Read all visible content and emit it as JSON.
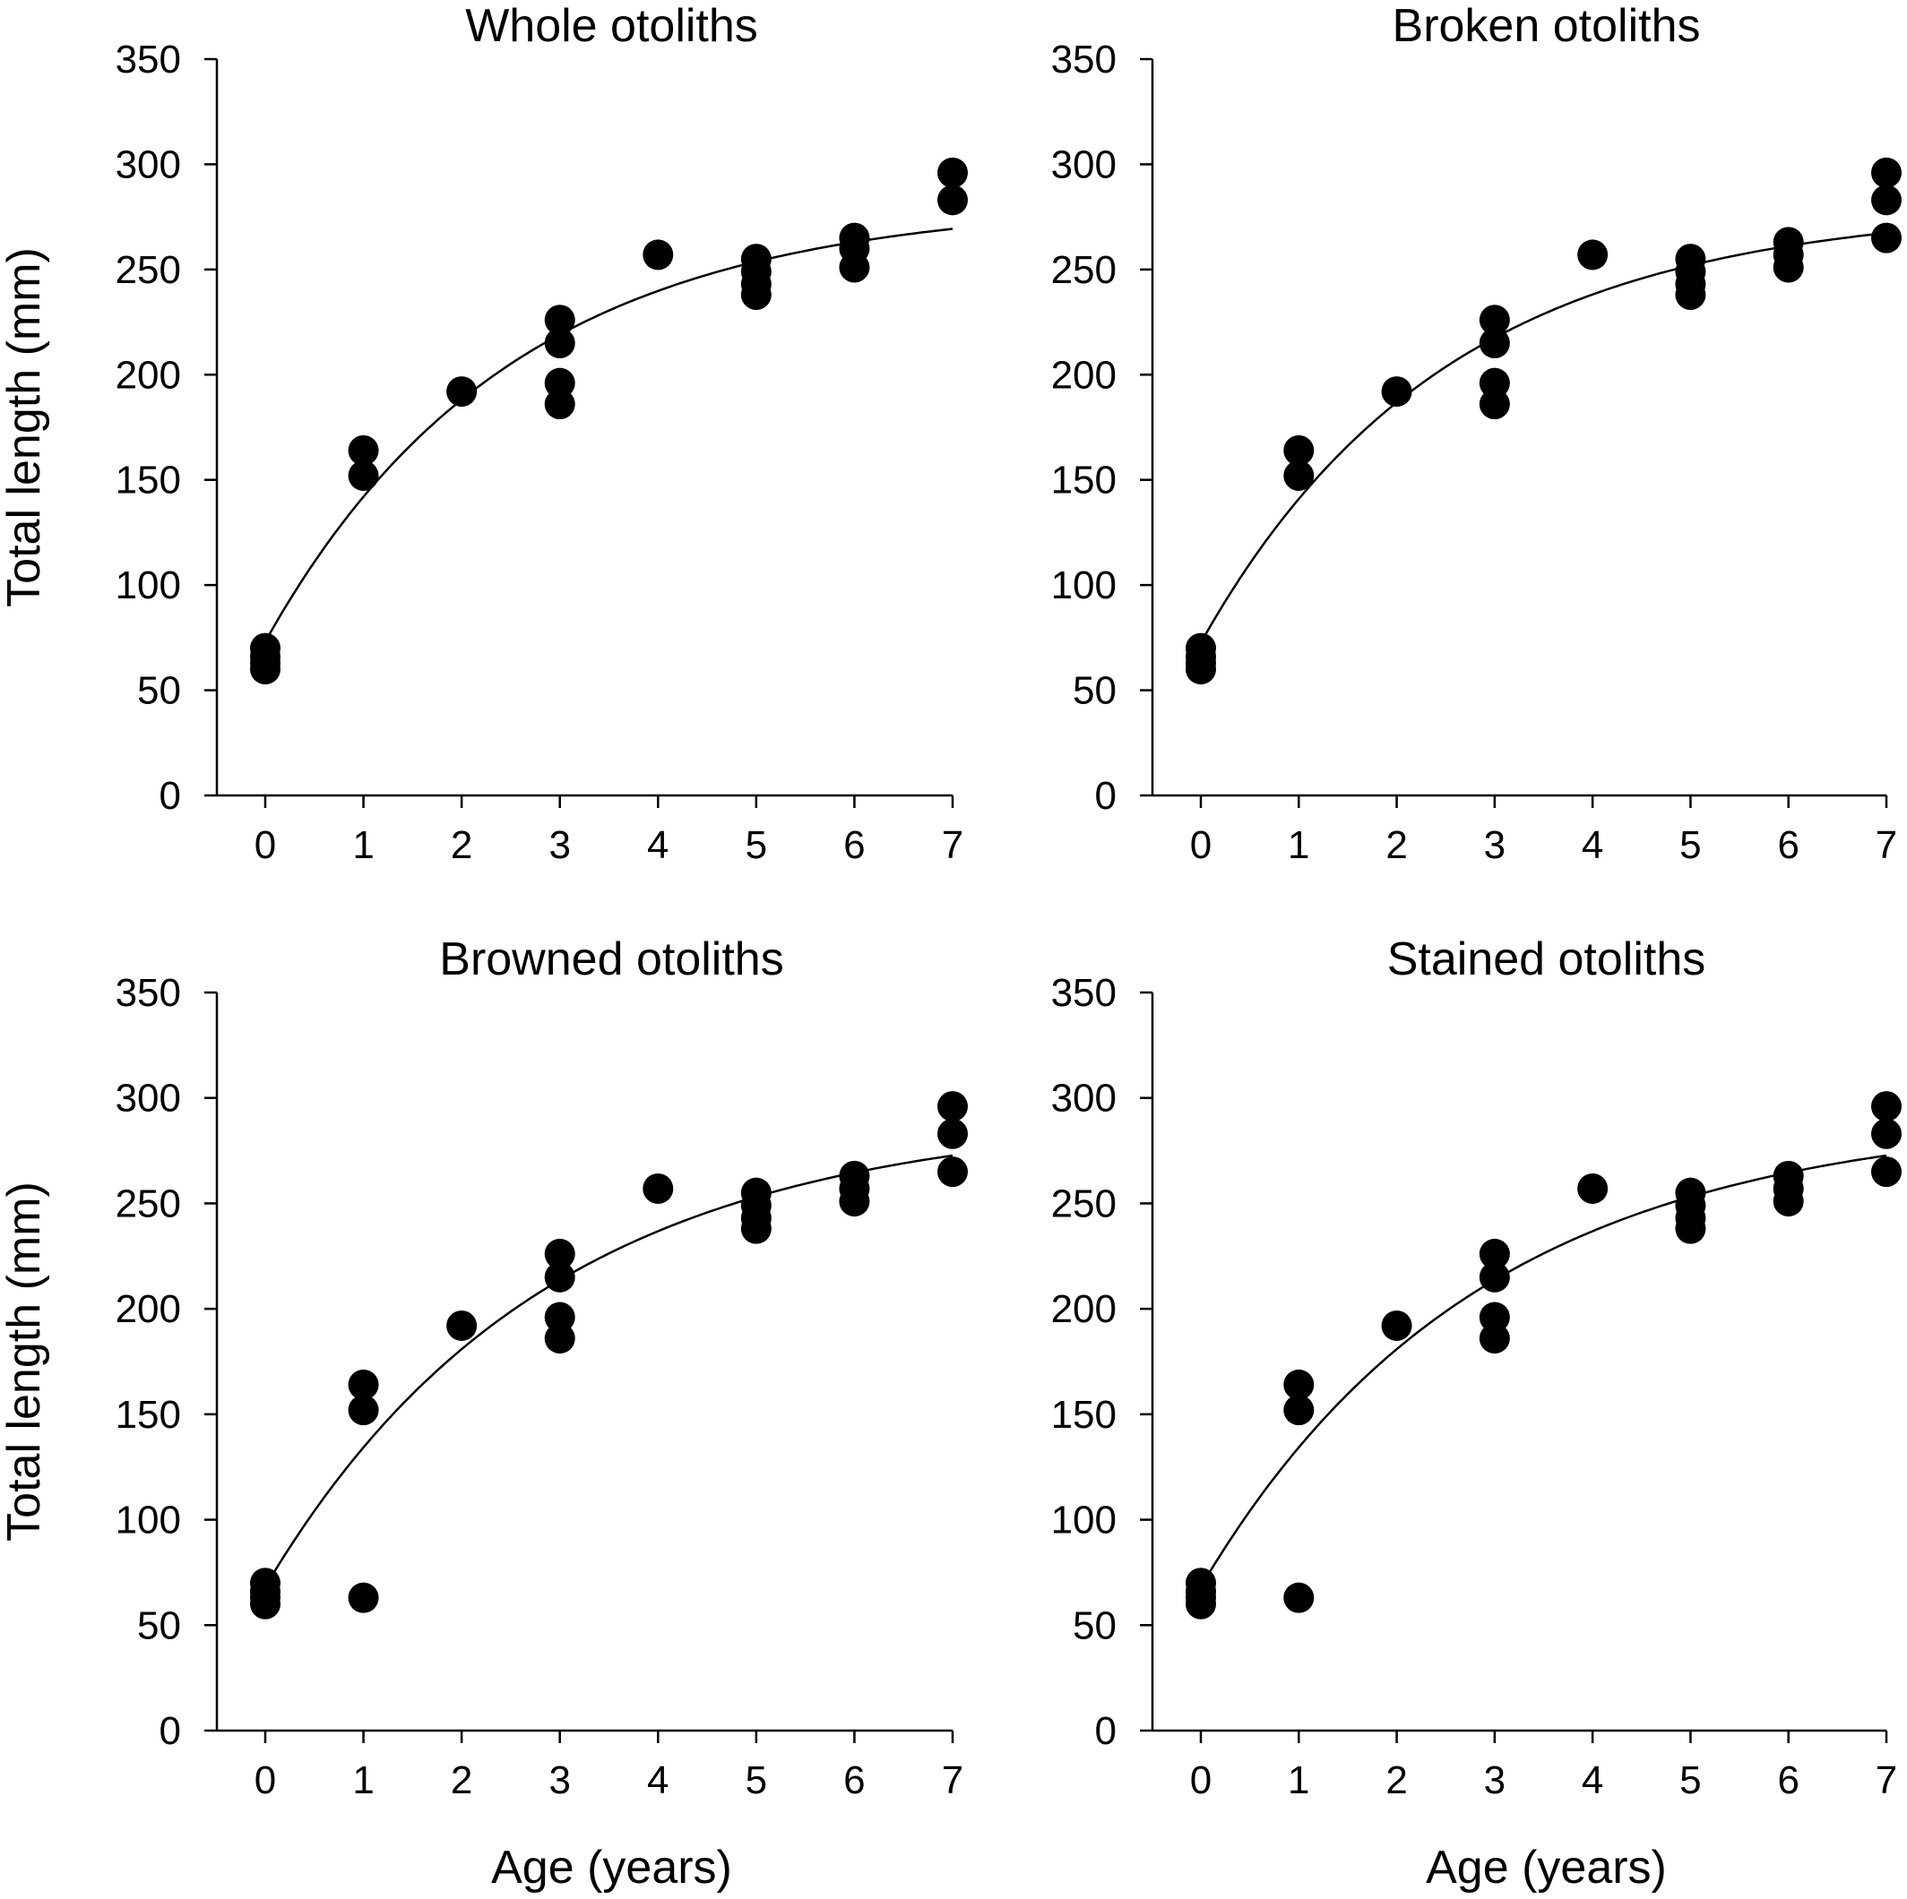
{
  "chart_data": [
    {
      "type": "scatter",
      "title": "Whole otoliths",
      "xlabel": "",
      "ylabel": "Total length (mm)",
      "xlim": [
        0,
        7
      ],
      "ylim": [
        0,
        350
      ],
      "xticks": [
        "0",
        "1",
        "2",
        "3",
        "4",
        "5",
        "6",
        "7"
      ],
      "yticks": [
        "0",
        "50",
        "100",
        "150",
        "200",
        "250",
        "300",
        "350"
      ],
      "grid": false,
      "points": [
        {
          "x": 0,
          "y": 60
        },
        {
          "x": 0,
          "y": 63
        },
        {
          "x": 0,
          "y": 66
        },
        {
          "x": 0,
          "y": 70
        },
        {
          "x": 1,
          "y": 152
        },
        {
          "x": 1,
          "y": 164
        },
        {
          "x": 2,
          "y": 192
        },
        {
          "x": 3,
          "y": 186
        },
        {
          "x": 3,
          "y": 196
        },
        {
          "x": 3,
          "y": 215
        },
        {
          "x": 3,
          "y": 226
        },
        {
          "x": 4,
          "y": 257
        },
        {
          "x": 5,
          "y": 238
        },
        {
          "x": 5,
          "y": 243
        },
        {
          "x": 5,
          "y": 249
        },
        {
          "x": 5,
          "y": 255
        },
        {
          "x": 6,
          "y": 251
        },
        {
          "x": 6,
          "y": 260
        },
        {
          "x": 6,
          "y": 265
        },
        {
          "x": 7,
          "y": 283
        },
        {
          "x": 7,
          "y": 296
        }
      ],
      "fit": {
        "name": "von Bertalanffy growth curve",
        "Linf": 282,
        "k": 0.4,
        "t0": -0.75,
        "x_range": [
          0,
          7
        ]
      }
    },
    {
      "type": "scatter",
      "title": "Broken otoliths",
      "xlabel": "",
      "ylabel": "",
      "xlim": [
        0,
        7
      ],
      "ylim": [
        0,
        350
      ],
      "xticks": [
        "0",
        "1",
        "2",
        "3",
        "4",
        "5",
        "6",
        "7"
      ],
      "yticks": [
        "0",
        "50",
        "100",
        "150",
        "200",
        "250",
        "300",
        "350"
      ],
      "grid": false,
      "points": [
        {
          "x": 0,
          "y": 60
        },
        {
          "x": 0,
          "y": 63
        },
        {
          "x": 0,
          "y": 66
        },
        {
          "x": 0,
          "y": 70
        },
        {
          "x": 1,
          "y": 152
        },
        {
          "x": 1,
          "y": 164
        },
        {
          "x": 2,
          "y": 192
        },
        {
          "x": 3,
          "y": 186
        },
        {
          "x": 3,
          "y": 196
        },
        {
          "x": 3,
          "y": 215
        },
        {
          "x": 3,
          "y": 226
        },
        {
          "x": 4,
          "y": 257
        },
        {
          "x": 5,
          "y": 238
        },
        {
          "x": 5,
          "y": 243
        },
        {
          "x": 5,
          "y": 249
        },
        {
          "x": 5,
          "y": 255
        },
        {
          "x": 6,
          "y": 251
        },
        {
          "x": 6,
          "y": 257
        },
        {
          "x": 6,
          "y": 263
        },
        {
          "x": 7,
          "y": 265
        },
        {
          "x": 7,
          "y": 283
        },
        {
          "x": 7,
          "y": 296
        }
      ],
      "fit": {
        "name": "von Bertalanffy growth curve",
        "Linf": 280,
        "k": 0.4,
        "t0": -0.75,
        "x_range": [
          0,
          7
        ]
      }
    },
    {
      "type": "scatter",
      "title": "Browned otoliths",
      "xlabel": "Age (years)",
      "ylabel": "Total length (mm)",
      "xlim": [
        0,
        7
      ],
      "ylim": [
        0,
        350
      ],
      "xticks": [
        "0",
        "1",
        "2",
        "3",
        "4",
        "5",
        "6",
        "7"
      ],
      "yticks": [
        "0",
        "50",
        "100",
        "150",
        "200",
        "250",
        "300",
        "350"
      ],
      "grid": false,
      "points": [
        {
          "x": 0,
          "y": 60
        },
        {
          "x": 0,
          "y": 63
        },
        {
          "x": 0,
          "y": 66
        },
        {
          "x": 0,
          "y": 70
        },
        {
          "x": 1,
          "y": 63
        },
        {
          "x": 1,
          "y": 152
        },
        {
          "x": 1,
          "y": 164
        },
        {
          "x": 2,
          "y": 192
        },
        {
          "x": 3,
          "y": 186
        },
        {
          "x": 3,
          "y": 196
        },
        {
          "x": 3,
          "y": 215
        },
        {
          "x": 3,
          "y": 226
        },
        {
          "x": 4,
          "y": 257
        },
        {
          "x": 5,
          "y": 238
        },
        {
          "x": 5,
          "y": 243
        },
        {
          "x": 5,
          "y": 249
        },
        {
          "x": 5,
          "y": 255
        },
        {
          "x": 6,
          "y": 251
        },
        {
          "x": 6,
          "y": 257
        },
        {
          "x": 6,
          "y": 263
        },
        {
          "x": 7,
          "y": 265
        },
        {
          "x": 7,
          "y": 283
        },
        {
          "x": 7,
          "y": 296
        }
      ],
      "fit": {
        "name": "von Bertalanffy growth curve",
        "Linf": 292,
        "k": 0.35,
        "t0": -0.76,
        "x_range": [
          0,
          7
        ]
      }
    },
    {
      "type": "scatter",
      "title": "Stained otoliths",
      "xlabel": "Age (years)",
      "ylabel": "",
      "xlim": [
        0,
        7
      ],
      "ylim": [
        0,
        350
      ],
      "xticks": [
        "0",
        "1",
        "2",
        "3",
        "4",
        "5",
        "6",
        "7"
      ],
      "yticks": [
        "0",
        "50",
        "100",
        "150",
        "200",
        "250",
        "300",
        "350"
      ],
      "grid": false,
      "points": [
        {
          "x": 0,
          "y": 60
        },
        {
          "x": 0,
          "y": 63
        },
        {
          "x": 0,
          "y": 66
        },
        {
          "x": 0,
          "y": 70
        },
        {
          "x": 1,
          "y": 63
        },
        {
          "x": 1,
          "y": 152
        },
        {
          "x": 1,
          "y": 164
        },
        {
          "x": 2,
          "y": 192
        },
        {
          "x": 3,
          "y": 186
        },
        {
          "x": 3,
          "y": 196
        },
        {
          "x": 3,
          "y": 215
        },
        {
          "x": 3,
          "y": 226
        },
        {
          "x": 4,
          "y": 257
        },
        {
          "x": 5,
          "y": 238
        },
        {
          "x": 5,
          "y": 243
        },
        {
          "x": 5,
          "y": 249
        },
        {
          "x": 5,
          "y": 255
        },
        {
          "x": 6,
          "y": 251
        },
        {
          "x": 6,
          "y": 257
        },
        {
          "x": 6,
          "y": 263
        },
        {
          "x": 7,
          "y": 265
        },
        {
          "x": 7,
          "y": 283
        },
        {
          "x": 7,
          "y": 296
        }
      ],
      "fit": {
        "name": "von Bertalanffy growth curve",
        "Linf": 292,
        "k": 0.35,
        "t0": -0.76,
        "x_range": [
          0,
          7
        ]
      }
    }
  ]
}
